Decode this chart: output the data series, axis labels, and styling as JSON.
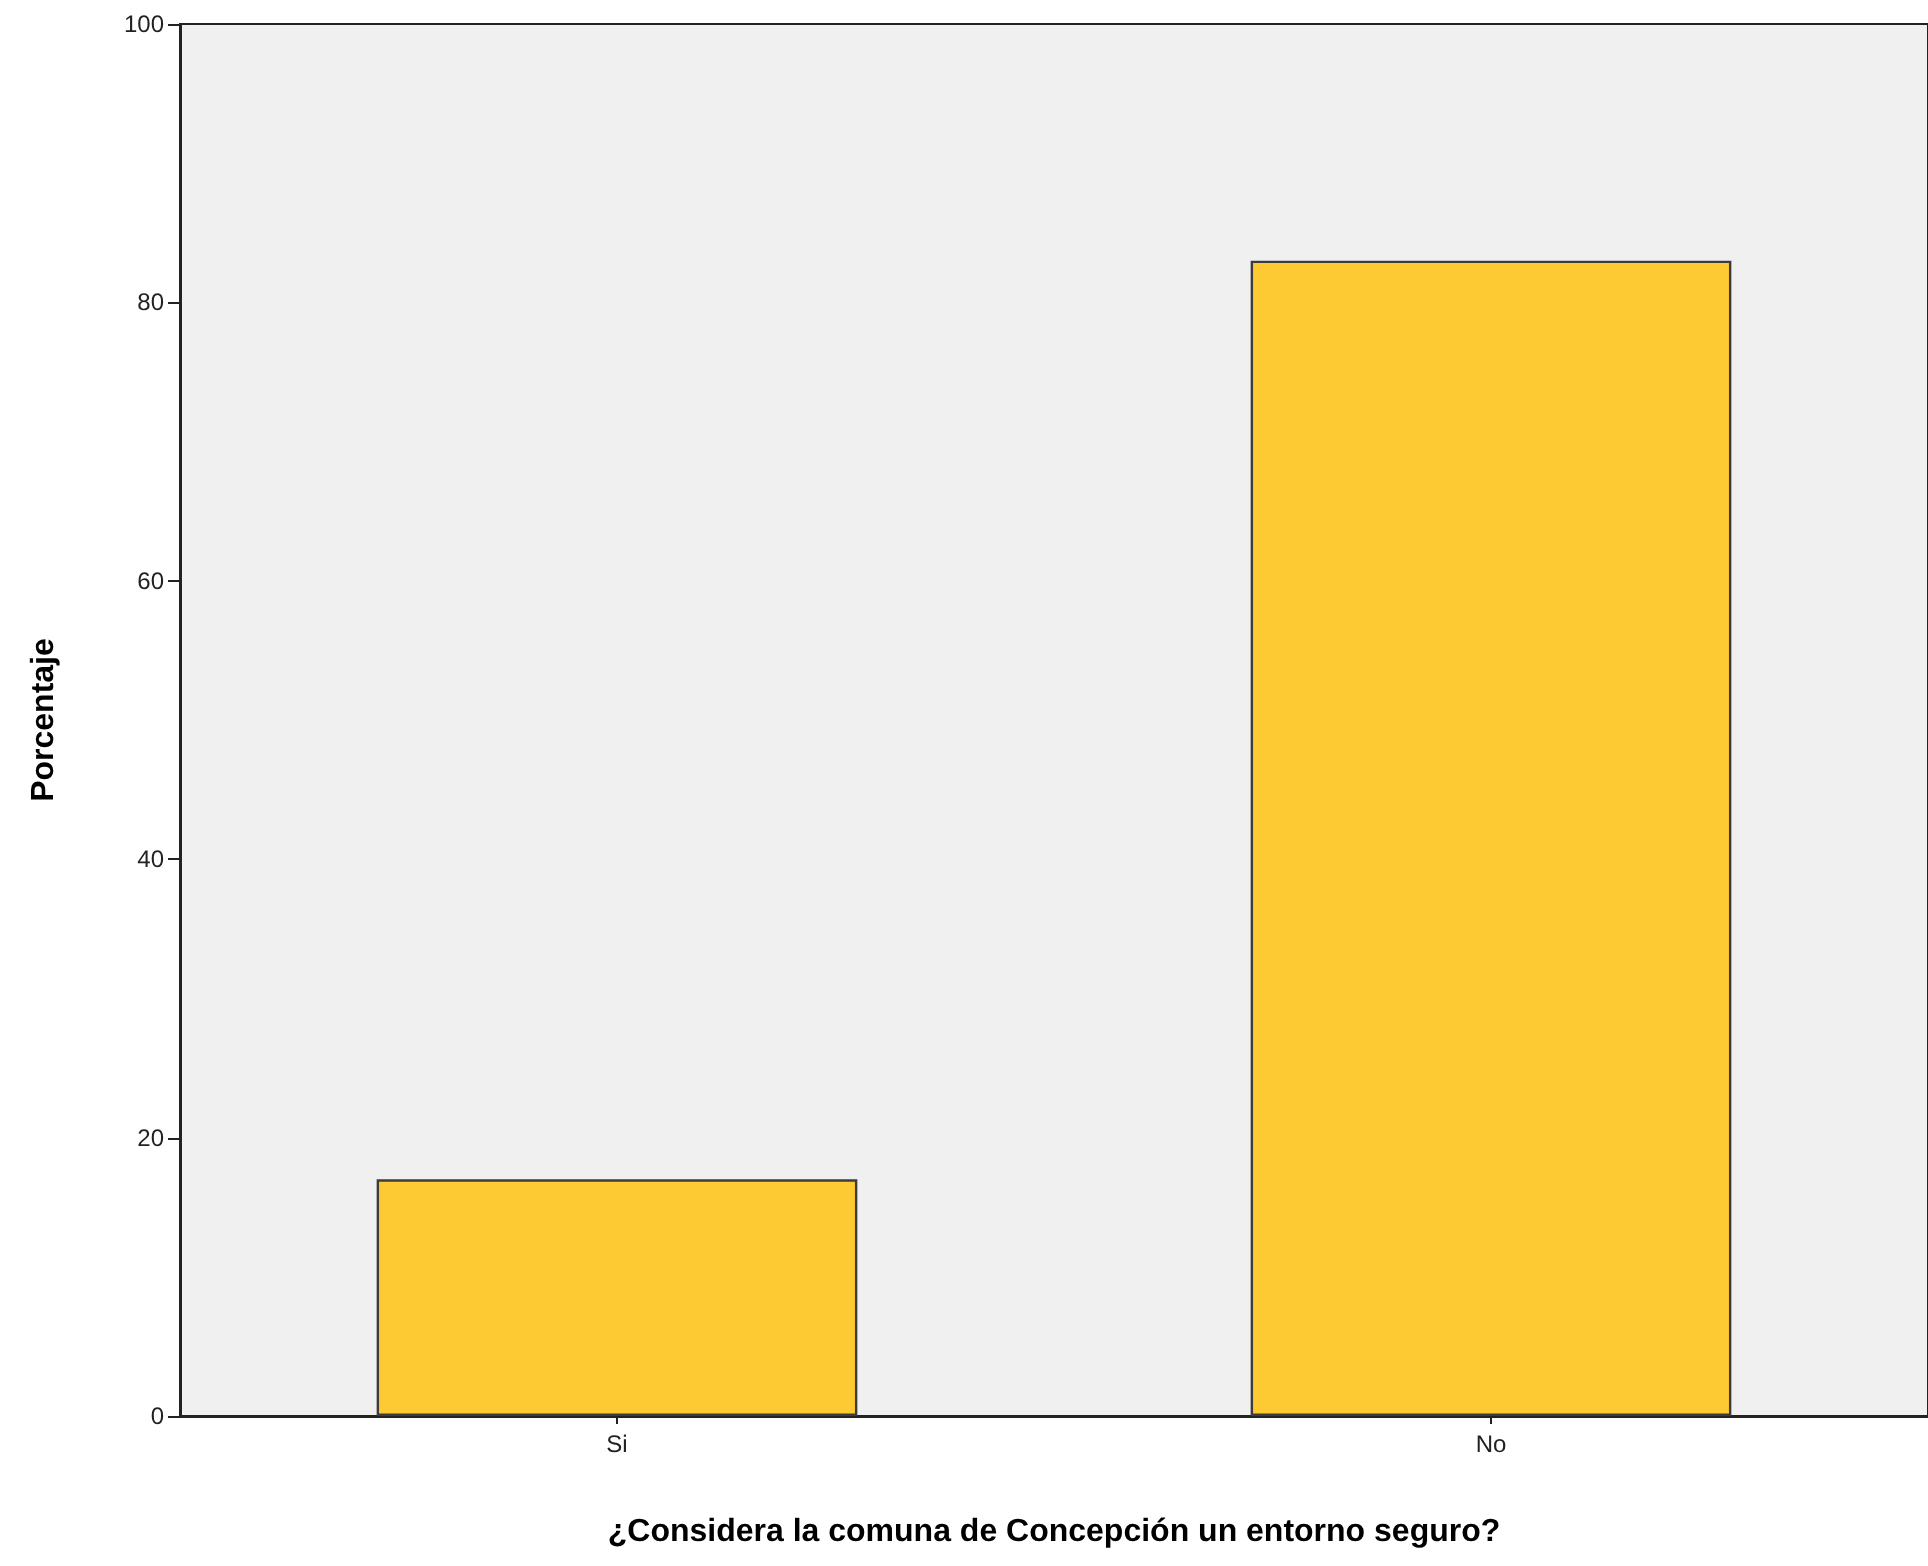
{
  "chart_data": {
    "type": "bar",
    "xlabel": "¿Considera la comuna de Concepción un entorno seguro?",
    "ylabel": "Porcentaje",
    "categories": [
      "Si",
      "No"
    ],
    "values": [
      17,
      83
    ],
    "color": "#fdca33",
    "ylim": [
      0,
      100
    ],
    "yticks": [
      0,
      20,
      40,
      60,
      80,
      100
    ],
    "grid": false
  }
}
